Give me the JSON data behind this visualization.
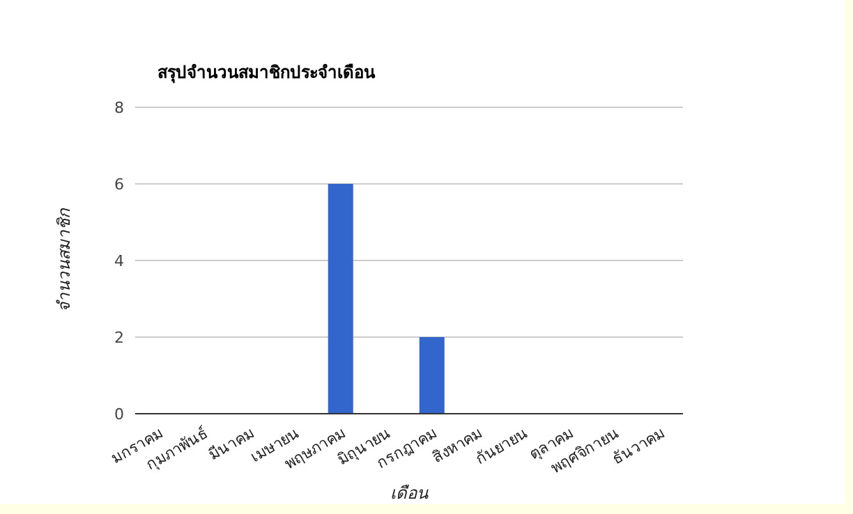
{
  "chart_data": {
    "type": "bar",
    "title": "สรุปจำนวนสมาชิกประจำเดือน",
    "xlabel": "เดือน",
    "ylabel": "จำนวนสมาชิก",
    "categories": [
      "มกราคม",
      "กุมภาพันธ์",
      "มีนาคม",
      "เมษายน",
      "พฤษภาคม",
      "มิถุนายน",
      "กรกฎาคม",
      "สิงหาคม",
      "กันยายน",
      "ตุลาคม",
      "พฤศจิกายน",
      "ธันวาคม"
    ],
    "values": [
      0,
      0,
      0,
      0,
      6,
      0,
      2,
      0,
      0,
      0,
      0,
      0
    ],
    "color": "#3366cc",
    "ylim": [
      0,
      8
    ],
    "yticks": [
      0,
      2,
      4,
      6,
      8
    ],
    "grid": "y"
  }
}
